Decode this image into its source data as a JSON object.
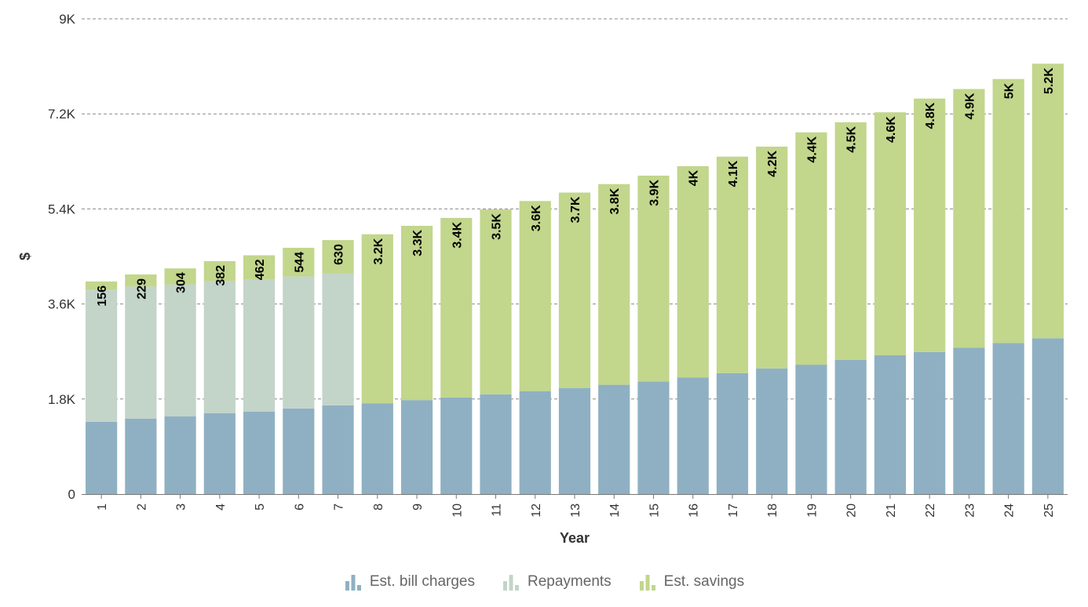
{
  "chart_data": {
    "type": "bar",
    "stacked": true,
    "xlabel": "Year",
    "ylabel": "$",
    "ylim": [
      0,
      9000
    ],
    "yticks": [
      0,
      1800,
      3600,
      5400,
      7200,
      9000
    ],
    "ytick_labels": [
      "0",
      "1.8K",
      "3.6K",
      "5.4K",
      "7.2K",
      "9K"
    ],
    "grid": true,
    "legend_position": "bottom-center",
    "categories": [
      "1",
      "2",
      "3",
      "4",
      "5",
      "6",
      "7",
      "8",
      "9",
      "10",
      "11",
      "12",
      "13",
      "14",
      "15",
      "16",
      "17",
      "18",
      "19",
      "20",
      "21",
      "22",
      "23",
      "24",
      "25"
    ],
    "series": [
      {
        "name": "Est. bill charges",
        "color": "#8fb0c3",
        "values": [
          1370,
          1430,
          1470,
          1530,
          1560,
          1620,
          1680,
          1720,
          1780,
          1830,
          1890,
          1950,
          2010,
          2070,
          2130,
          2210,
          2290,
          2380,
          2450,
          2540,
          2630,
          2690,
          2770,
          2860,
          2950
        ]
      },
      {
        "name": "Repayments",
        "color": "#c3d4c9",
        "values": [
          2500,
          2500,
          2500,
          2500,
          2500,
          2500,
          2500,
          0,
          0,
          0,
          0,
          0,
          0,
          0,
          0,
          0,
          0,
          0,
          0,
          0,
          0,
          0,
          0,
          0,
          0
        ]
      },
      {
        "name": "Est. savings",
        "color": "#c2d68c",
        "values": [
          156,
          229,
          304,
          382,
          462,
          544,
          630,
          3200,
          3300,
          3400,
          3500,
          3600,
          3700,
          3800,
          3900,
          4000,
          4100,
          4200,
          4400,
          4500,
          4600,
          4800,
          4900,
          5000,
          5200
        ],
        "labels": [
          "156",
          "229",
          "304",
          "382",
          "462",
          "544",
          "630",
          "3.2K",
          "3.3K",
          "3.4K",
          "3.5K",
          "3.6K",
          "3.7K",
          "3.8K",
          "3.9K",
          "4K",
          "4.1K",
          "4.2K",
          "4.4K",
          "4.5K",
          "4.6K",
          "4.8K",
          "4.9K",
          "5K",
          "5.2K"
        ]
      }
    ]
  }
}
